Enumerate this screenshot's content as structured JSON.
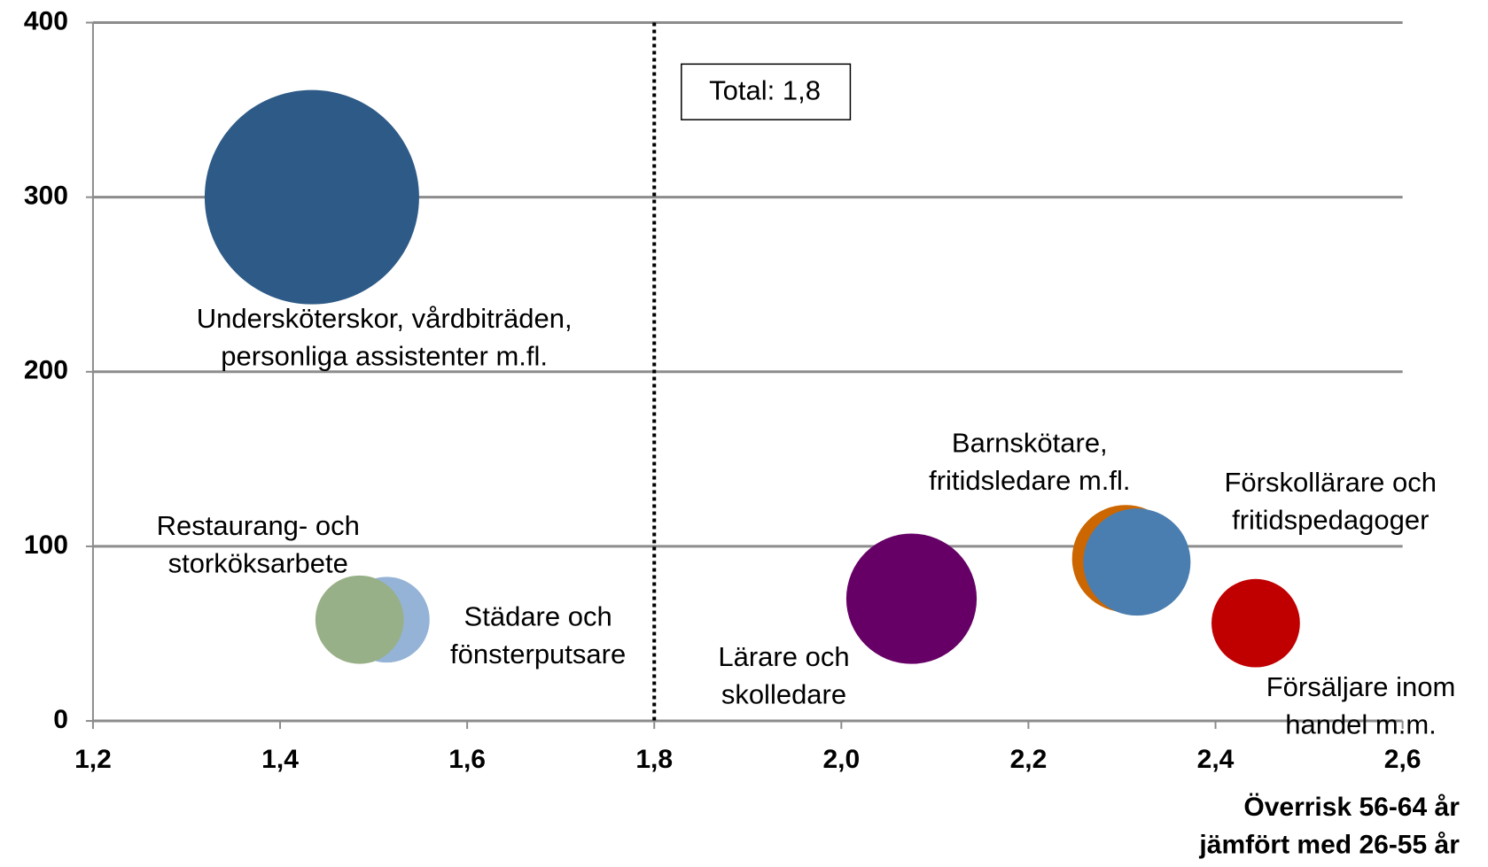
{
  "chart_data": {
    "type": "bubble",
    "xlim": [
      1.2,
      2.6
    ],
    "ylim": [
      0,
      400
    ],
    "xticks": [
      {
        "value": 1.2,
        "label": "1,2"
      },
      {
        "value": 1.4,
        "label": "1,4"
      },
      {
        "value": 1.6,
        "label": "1,6"
      },
      {
        "value": 1.8,
        "label": "1,8"
      },
      {
        "value": 2.0,
        "label": "2,0"
      },
      {
        "value": 2.2,
        "label": "2,2"
      },
      {
        "value": 2.4,
        "label": "2,4"
      },
      {
        "value": 2.6,
        "label": "2,6"
      }
    ],
    "yticks": [
      0,
      100,
      200,
      300,
      400
    ],
    "grid": true,
    "x_label": [
      "Överrisk 56-64 år",
      "jämfört med 26-55 år"
    ],
    "reference_x": 1.8,
    "annotation": "Total: 1,8",
    "series": [
      {
        "label": [
          "Undersköterskor, vårdbiträden,",
          "personliga assistenter m.fl."
        ],
        "color": "#2e5a87",
        "x": [
          1.434
        ],
        "values": [
          300
        ],
        "sizes": [
          100
        ]
      },
      {
        "label": [
          "Städare och",
          "fönsterputsare"
        ],
        "color": "#95b3d7",
        "x": [
          1.514
        ],
        "values": [
          58
        ],
        "sizes": [
          16
        ]
      },
      {
        "label": [
          "Restaurang- och",
          "storköksarbete"
        ],
        "color": "#98b087",
        "x": [
          1.485
        ],
        "values": [
          58
        ],
        "sizes": [
          17
        ]
      },
      {
        "label": [
          "Lärare och",
          "skolledare"
        ],
        "color": "#660066",
        "x": [
          2.075
        ],
        "values": [
          70
        ],
        "sizes": [
          37
        ]
      },
      {
        "label": [
          "Barnskötare,",
          "fritidsledare m.fl."
        ],
        "color": "#cc6600",
        "x": [
          2.304
        ],
        "values": [
          93
        ],
        "sizes": [
          25
        ]
      },
      {
        "label": [
          "Förskollärare och",
          "fritidspedagoger"
        ],
        "color": "#4a7eb0",
        "x": [
          2.316
        ],
        "values": [
          91
        ],
        "sizes": [
          25
        ]
      },
      {
        "label": [
          "Försäljare inom",
          "handel m.m."
        ],
        "color": "#c00000",
        "x": [
          2.443
        ],
        "values": [
          56
        ],
        "sizes": [
          17
        ]
      }
    ]
  }
}
